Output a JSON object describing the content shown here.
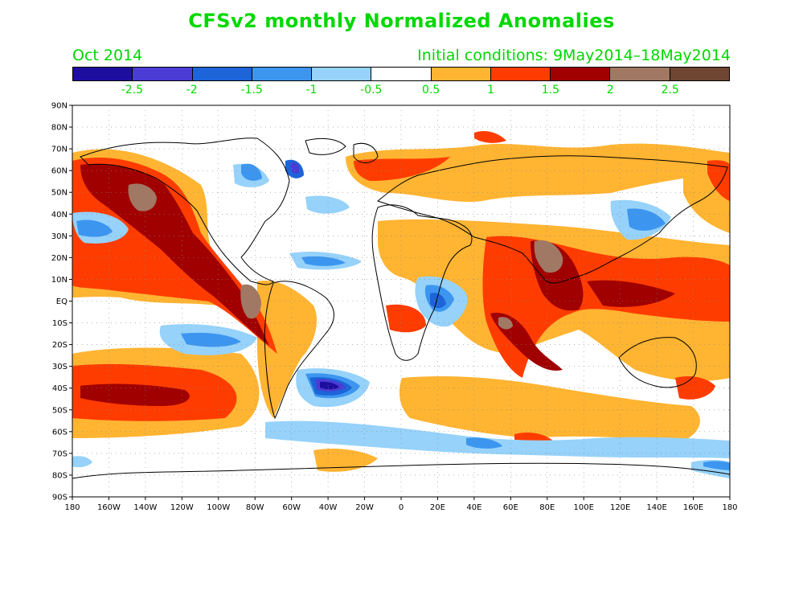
{
  "title": "CFSv2 monthly Normalized Anomalies",
  "month": "Oct 2014",
  "initial_conditions": "Initial conditions: 9May2014–18May2014",
  "colorbar": {
    "colors": [
      "#1e0ea0",
      "#4a3cd4",
      "#1c64d8",
      "#3c96f0",
      "#96d2fa",
      "#ffffff",
      "#ffb432",
      "#ff3c00",
      "#a00000",
      "#a07864",
      "#6e4632"
    ],
    "labels": [
      "-2.5",
      "-2",
      "-1.5",
      "-1",
      "-0.5",
      "0.5",
      "1",
      "1.5",
      "2",
      "2.5"
    ]
  },
  "axes": {
    "lat_labels": [
      "90N",
      "80N",
      "70N",
      "60N",
      "50N",
      "40N",
      "30N",
      "20N",
      "10N",
      "EQ",
      "10S",
      "20S",
      "30S",
      "40S",
      "50S",
      "60S",
      "70S",
      "80S",
      "90S"
    ],
    "lon_labels": [
      "180",
      "160W",
      "140W",
      "120W",
      "100W",
      "80W",
      "60W",
      "40W",
      "20W",
      "0",
      "20E",
      "40E",
      "60E",
      "80E",
      "100E",
      "120E",
      "140E",
      "160E",
      "180"
    ]
  }
}
